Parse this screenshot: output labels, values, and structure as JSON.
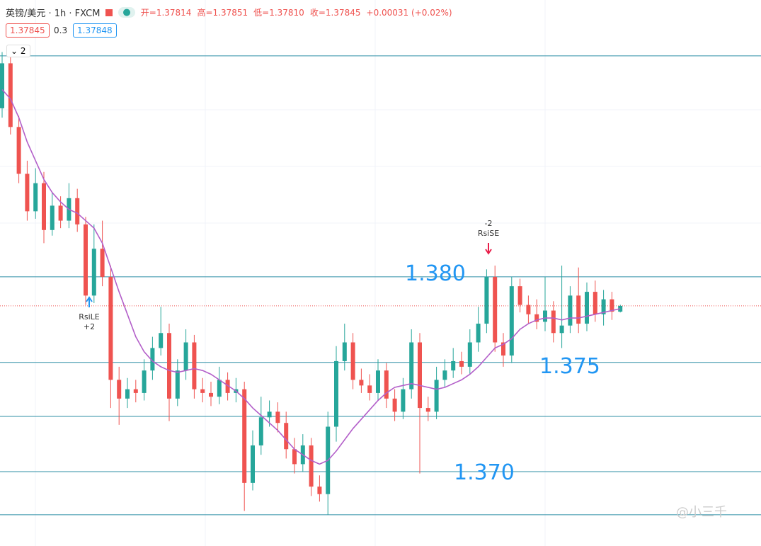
{
  "header": {
    "symbol": "英镑/美元 · 1h · FXCM",
    "ohlc": [
      "开=1.37814",
      "高=1.37851",
      "低=1.37810",
      "收=1.37845",
      "+0.00031 (+0.02%)"
    ],
    "bid": "1.37845",
    "spread": "0.3",
    "ask": "1.37848",
    "indicators": "2"
  },
  "signals": [
    {
      "label": "RsiLE",
      "qty": "+2"
    },
    {
      "label": "RsiSE",
      "qty": "-2"
    }
  ],
  "annotations": [
    "1.380",
    "1.375",
    "1.370"
  ],
  "watermark": "@小三千",
  "chart_data": {
    "type": "candlestick",
    "open": [
      1.389,
      1.3914,
      1.388,
      1.3855,
      1.3835,
      1.385,
      1.3825,
      1.3838,
      1.383,
      1.3842,
      1.3828,
      1.379,
      1.3815,
      1.38,
      1.3745,
      1.3735,
      1.374,
      1.3738,
      1.375,
      1.3762,
      1.377,
      1.3735,
      1.375,
      1.3765,
      1.374,
      1.3738,
      1.3736,
      1.3745,
      1.3738,
      1.374,
      1.369,
      1.371,
      1.3725,
      1.3728,
      1.3722,
      1.3708,
      1.37,
      1.371,
      1.3688,
      1.3684,
      1.372,
      1.3755,
      1.3765,
      1.3745,
      1.3742,
      1.3738,
      1.375,
      1.3735,
      1.3728,
      1.374,
      1.3765,
      1.373,
      1.3728,
      1.3745,
      1.375,
      1.3755,
      1.3752,
      1.3765,
      1.3775,
      1.38,
      1.3765,
      1.3758,
      1.3795,
      1.3785,
      1.378,
      1.3776,
      1.3782,
      1.377,
      1.3774,
      1.379,
      1.3775,
      1.3792,
      1.378,
      1.3788,
      1.37814
    ],
    "high": [
      1.392,
      1.3918,
      1.3886,
      1.3862,
      1.3858,
      1.3856,
      1.3845,
      1.3843,
      1.385,
      1.3847,
      1.3832,
      1.3828,
      1.383,
      1.3806,
      1.3752,
      1.3746,
      1.3745,
      1.3756,
      1.3768,
      1.3784,
      1.3775,
      1.3756,
      1.3772,
      1.3769,
      1.3746,
      1.3744,
      1.3752,
      1.3749,
      1.3746,
      1.3744,
      1.3718,
      1.3736,
      1.3734,
      1.3733,
      1.3728,
      1.3714,
      1.3716,
      1.3714,
      1.3694,
      1.3728,
      1.3763,
      1.3775,
      1.377,
      1.3751,
      1.3748,
      1.3756,
      1.3754,
      1.374,
      1.3746,
      1.3772,
      1.377,
      1.3736,
      1.3752,
      1.3756,
      1.3762,
      1.376,
      1.3772,
      1.3784,
      1.3804,
      1.3806,
      1.377,
      1.38,
      1.3799,
      1.379,
      1.3788,
      1.38,
      1.3787,
      1.3806,
      1.3795,
      1.3805,
      1.3797,
      1.3798,
      1.3793,
      1.3792,
      1.37851
    ],
    "low": [
      1.3885,
      1.3876,
      1.385,
      1.383,
      1.3831,
      1.3818,
      1.3822,
      1.3826,
      1.3826,
      1.3824,
      1.3785,
      1.3786,
      1.3795,
      1.373,
      1.3721,
      1.373,
      1.3733,
      1.3734,
      1.3745,
      1.3758,
      1.3723,
      1.3731,
      1.3745,
      1.3735,
      1.3733,
      1.3731,
      1.3732,
      1.3734,
      1.3733,
      1.3675,
      1.3686,
      1.3705,
      1.372,
      1.3717,
      1.3703,
      1.3695,
      1.3696,
      1.3683,
      1.368,
      1.3673,
      1.3712,
      1.375,
      1.374,
      1.3738,
      1.3734,
      1.3734,
      1.373,
      1.3723,
      1.3724,
      1.3735,
      1.3695,
      1.3723,
      1.3724,
      1.3741,
      1.3746,
      1.3748,
      1.3748,
      1.376,
      1.377,
      1.376,
      1.3752,
      1.3754,
      1.3781,
      1.3775,
      1.3772,
      1.3771,
      1.3765,
      1.3762,
      1.377,
      1.377,
      1.3771,
      1.3776,
      1.3774,
      1.3777,
      1.3781
    ],
    "close": [
      1.3914,
      1.388,
      1.3855,
      1.3835,
      1.385,
      1.3825,
      1.3838,
      1.383,
      1.3842,
      1.3828,
      1.379,
      1.3815,
      1.38,
      1.3745,
      1.3735,
      1.374,
      1.3738,
      1.375,
      1.3762,
      1.377,
      1.3735,
      1.375,
      1.3765,
      1.374,
      1.3738,
      1.3736,
      1.3745,
      1.3738,
      1.374,
      1.369,
      1.371,
      1.3725,
      1.3728,
      1.3722,
      1.3708,
      1.37,
      1.371,
      1.3688,
      1.3684,
      1.372,
      1.3755,
      1.3765,
      1.3745,
      1.3742,
      1.3738,
      1.375,
      1.3735,
      1.3728,
      1.374,
      1.3765,
      1.373,
      1.3728,
      1.3745,
      1.375,
      1.3755,
      1.3752,
      1.3765,
      1.3775,
      1.38,
      1.3765,
      1.3758,
      1.3795,
      1.3785,
      1.378,
      1.3776,
      1.3782,
      1.377,
      1.3774,
      1.379,
      1.3775,
      1.3792,
      1.378,
      1.3788,
      1.37814,
      1.37845
    ],
    "ma": {
      "color": "#b35fc9",
      "values": [
        1.39,
        1.3895,
        1.3885,
        1.3872,
        1.3862,
        1.3852,
        1.3845,
        1.384,
        1.3836,
        1.3834,
        1.383,
        1.3826,
        1.3818,
        1.3805,
        1.3792,
        1.378,
        1.3768,
        1.376,
        1.3755,
        1.3752,
        1.375,
        1.3749,
        1.375,
        1.3751,
        1.375,
        1.3748,
        1.3745,
        1.3742,
        1.3739,
        1.3735,
        1.373,
        1.3726,
        1.3722,
        1.3718,
        1.3713,
        1.3708,
        1.3705,
        1.3702,
        1.37,
        1.3702,
        1.3707,
        1.3713,
        1.3719,
        1.3724,
        1.3729,
        1.3734,
        1.3738,
        1.3741,
        1.3742,
        1.3743,
        1.3742,
        1.3741,
        1.374,
        1.3741,
        1.3743,
        1.3745,
        1.3748,
        1.3752,
        1.3757,
        1.3762,
        1.3764,
        1.3767,
        1.3772,
        1.3775,
        1.3777,
        1.3778,
        1.3778,
        1.3777,
        1.3778,
        1.3778,
        1.3779,
        1.378,
        1.3781,
        1.3782,
        1.3783
      ]
    },
    "colors": {
      "up": "#26a69a",
      "down": "#ef5350"
    },
    "levels": [
      1.3918,
      1.38,
      1.37543,
      1.37255,
      1.3696,
      1.3673
    ],
    "level_color": "#2f8fa6",
    "last_price": 1.37845,
    "ylim": [
      1.36563,
      1.39478
    ]
  }
}
